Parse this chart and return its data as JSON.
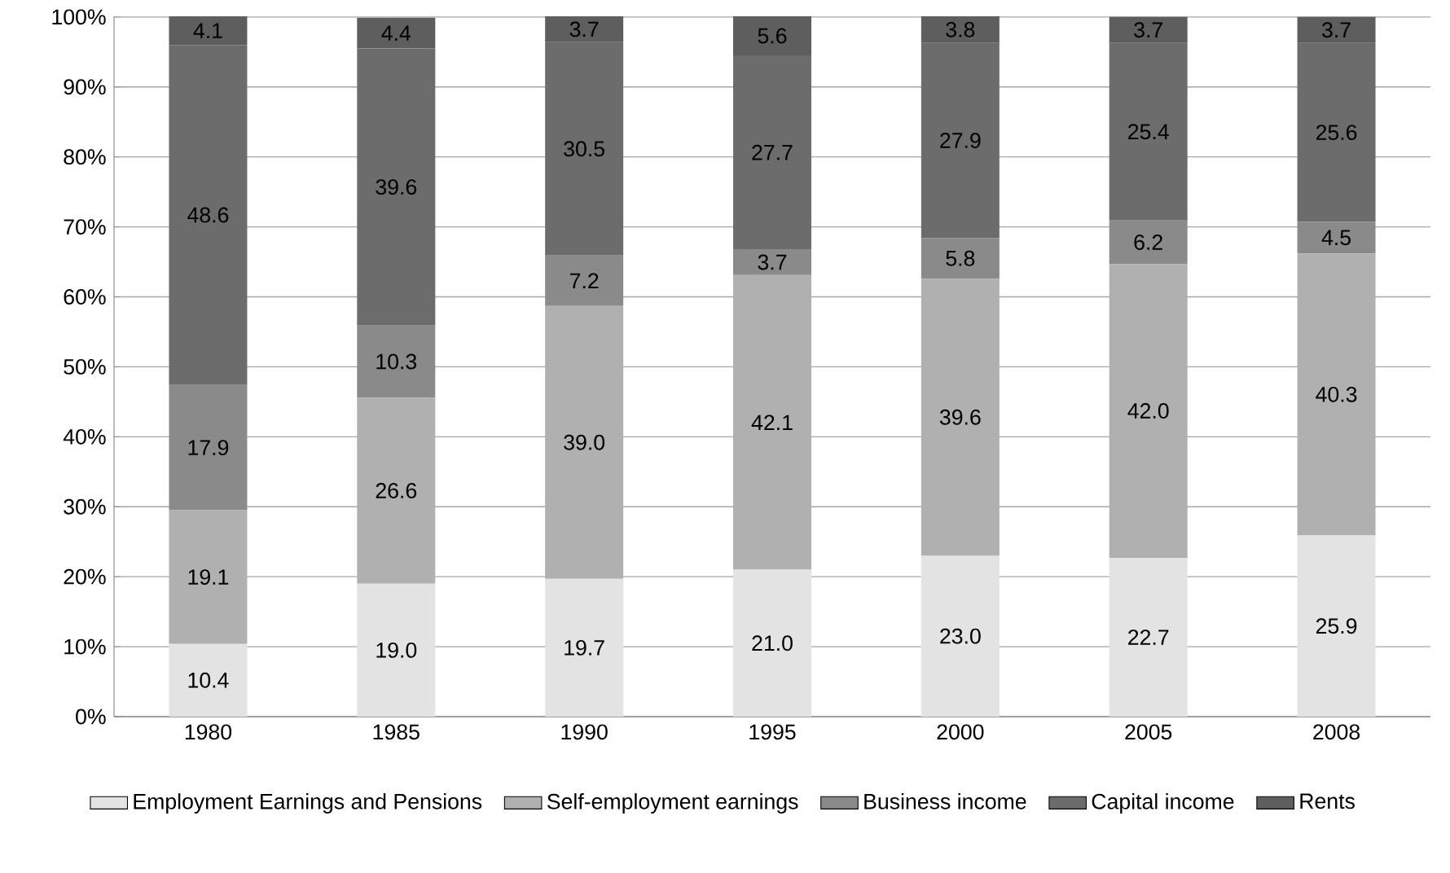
{
  "chart_data": {
    "type": "bar",
    "stacked": true,
    "categories": [
      "1980",
      "1985",
      "1990",
      "1995",
      "2000",
      "2005",
      "2008"
    ],
    "series": [
      {
        "name": "Employment Earnings and Pensions",
        "color": "#e3e3e3",
        "values": [
          10.4,
          19.0,
          19.7,
          21.0,
          23.0,
          22.7,
          25.9
        ],
        "value_labels": [
          "10.4",
          "19.0",
          "19.7",
          "21.0",
          "23.0",
          "22.7",
          "25.9"
        ]
      },
      {
        "name": "Self-employment earnings",
        "color": "#b0b0b0",
        "values": [
          19.1,
          26.6,
          39.0,
          42.1,
          39.6,
          42.0,
          40.3
        ],
        "value_labels": [
          "19.1",
          "26.6",
          "39.0",
          "42.1",
          "39.6",
          "42.0",
          "40.3"
        ]
      },
      {
        "name": "Business income",
        "color": "#8a8a8a",
        "values": [
          17.9,
          10.3,
          7.2,
          3.7,
          5.8,
          6.2,
          4.5
        ],
        "value_labels": [
          "17.9",
          "10.3",
          "7.2",
          "3.7",
          "5.8",
          "6.2",
          "4.5"
        ]
      },
      {
        "name": "Capital income",
        "color": "#6c6c6c",
        "values": [
          48.6,
          39.6,
          30.5,
          27.7,
          27.9,
          25.4,
          25.6
        ],
        "value_labels": [
          "48.6",
          "39.6",
          "30.5",
          "27.7",
          "27.9",
          "25.4",
          "25.6"
        ]
      },
      {
        "name": "Rents",
        "color": "#5e5e5e",
        "values": [
          4.1,
          4.4,
          3.7,
          5.6,
          3.8,
          3.7,
          3.7
        ],
        "value_labels": [
          "4.1",
          "4.4",
          "3.7",
          "5.6",
          "3.8",
          "3.7",
          "3.7"
        ]
      }
    ],
    "ylim": [
      0,
      100.1
    ],
    "yticks": [
      {
        "value": 0,
        "label": "0%"
      },
      {
        "value": 10,
        "label": "10%"
      },
      {
        "value": 20,
        "label": "20%"
      },
      {
        "value": 30,
        "label": "30%"
      },
      {
        "value": 40,
        "label": "40%"
      },
      {
        "value": 50,
        "label": "50%"
      },
      {
        "value": 60,
        "label": "60%"
      },
      {
        "value": 70,
        "label": "70%"
      },
      {
        "value": 80,
        "label": "80%"
      },
      {
        "value": 90,
        "label": "90%"
      },
      {
        "value": 100,
        "label": "100%"
      }
    ],
    "grid": "y",
    "legend": "bottom"
  }
}
